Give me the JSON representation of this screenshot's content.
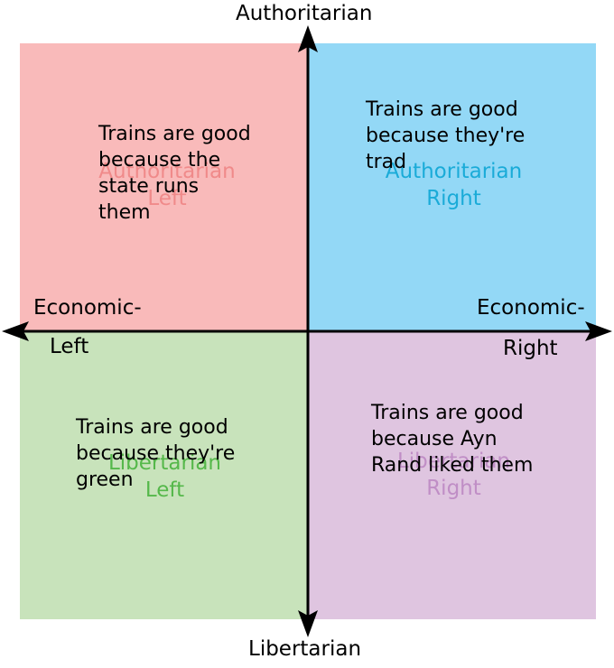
{
  "axes": {
    "top": "Authoritarian",
    "bottom": "Libertarian",
    "left_line1": "Economic-",
    "left_line2": "Left",
    "right_line1": "Economic-",
    "right_line2": "Right"
  },
  "quadrants": {
    "auth_left": {
      "line1": "Authoritarian",
      "line2": "Left",
      "color": "#f9baba",
      "label_color": "#f08a8a"
    },
    "auth_right": {
      "line1": "Authoritarian",
      "line2": "Right",
      "color": "#93d8f6",
      "label_color": "#1aabd8"
    },
    "lib_left": {
      "line1": "Libertarian",
      "line2": "Left",
      "color": "#c8e3bb",
      "label_color": "#55b84a"
    },
    "lib_right": {
      "line1": "Libertarian",
      "line2": "Right",
      "color": "#dfc5e0",
      "label_color": "#c08ec6"
    }
  },
  "notes": {
    "auth_left": "Trains are good\nbecause the\nstate runs\nthem",
    "auth_right": "Trains are good\nbecause they're\ntrad",
    "lib_left": "Trains are good\nbecause they're\ngreen",
    "lib_right": "Trains are good\nbecause Ayn\nRand liked them"
  }
}
